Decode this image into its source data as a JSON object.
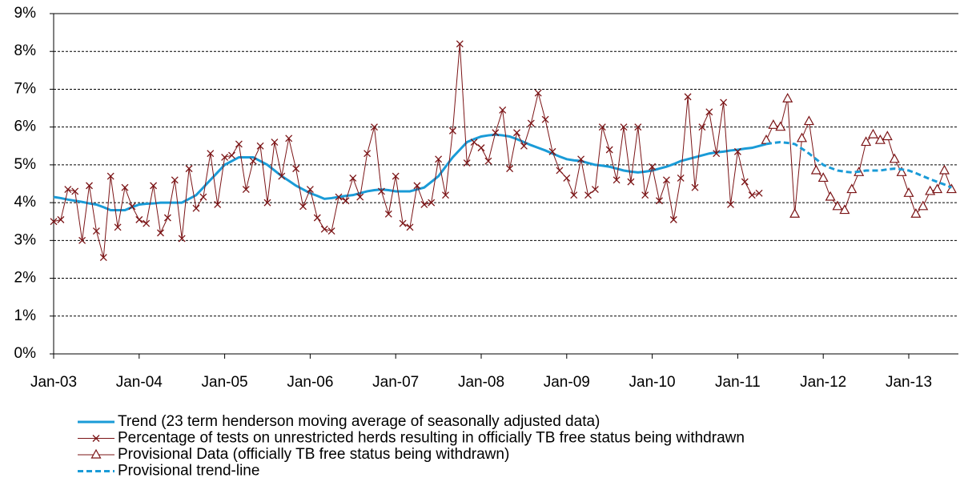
{
  "chart_data": {
    "type": "line",
    "categories": [
      "Jan-03",
      null,
      null,
      null,
      null,
      null,
      null,
      null,
      null,
      null,
      null,
      null,
      "Jan-04",
      null,
      null,
      null,
      null,
      null,
      null,
      null,
      null,
      null,
      null,
      null,
      "Jan-05",
      null,
      null,
      null,
      null,
      null,
      null,
      null,
      null,
      null,
      null,
      null,
      "Jan-06",
      null,
      null,
      null,
      null,
      null,
      null,
      null,
      null,
      null,
      null,
      null,
      "Jan-07",
      null,
      null,
      null,
      null,
      null,
      null,
      null,
      null,
      null,
      null,
      null,
      "Jan-08",
      null,
      null,
      null,
      null,
      null,
      null,
      null,
      null,
      null,
      null,
      null,
      "Jan-09",
      null,
      null,
      null,
      null,
      null,
      null,
      null,
      null,
      null,
      null,
      null,
      "Jan-10",
      null,
      null,
      null,
      null,
      null,
      null,
      null,
      null,
      null,
      null,
      null,
      "Jan-11",
      null,
      null,
      null,
      null,
      null,
      null,
      null,
      null,
      null,
      null,
      null,
      "Jan-12",
      null,
      null,
      null,
      null,
      null,
      null,
      null,
      null,
      null,
      null,
      null,
      "Jan-13",
      null,
      null,
      null,
      null,
      null,
      null
    ],
    "series": [
      {
        "name": "Trend (23 term henderson moving average of seasonally adjusted data)",
        "color": "#1a9bd7",
        "marker": "none",
        "dash": false,
        "width": 3,
        "values": [
          4.15,
          4.12,
          4.08,
          4.05,
          4.02,
          3.98,
          3.95,
          3.88,
          3.8,
          3.8,
          3.8,
          3.88,
          3.95,
          3.97,
          3.98,
          4.0,
          4.0,
          4.0,
          4.0,
          4.1,
          4.2,
          4.4,
          4.6,
          4.8,
          5.0,
          5.1,
          5.2,
          5.2,
          5.2,
          5.1,
          5.0,
          4.85,
          4.7,
          4.58,
          4.45,
          4.35,
          4.25,
          4.18,
          4.1,
          4.12,
          4.15,
          4.18,
          4.2,
          4.25,
          4.3,
          4.33,
          4.35,
          4.33,
          4.3,
          4.3,
          4.3,
          4.35,
          4.4,
          4.55,
          4.7,
          4.95,
          5.2,
          5.4,
          5.6,
          5.68,
          5.75,
          5.78,
          5.8,
          5.78,
          5.75,
          5.68,
          5.6,
          5.52,
          5.45,
          5.38,
          5.3,
          5.22,
          5.15,
          5.12,
          5.1,
          5.05,
          5.0,
          4.98,
          4.95,
          4.9,
          4.85,
          4.82,
          4.8,
          4.82,
          4.85,
          4.9,
          4.95,
          5.02,
          5.1,
          5.15,
          5.2,
          5.25,
          5.3,
          5.33,
          5.35,
          5.38,
          5.4,
          5.43,
          5.45,
          5.5,
          5.55,
          null,
          null,
          null,
          null,
          null,
          null,
          null,
          null,
          null,
          null,
          null,
          null,
          null,
          null,
          null,
          null,
          null,
          null,
          null,
          null,
          null,
          null,
          null,
          null,
          null,
          null
        ]
      },
      {
        "name": "Percentage of tests on unrestricted herds resulting in officially TB free status being withdrawn",
        "color": "#7b1416",
        "marker": "x",
        "dash": false,
        "width": 1,
        "values": [
          3.5,
          3.55,
          4.35,
          4.3,
          3.0,
          4.45,
          3.25,
          2.55,
          4.7,
          3.35,
          4.4,
          3.9,
          3.55,
          3.45,
          4.45,
          3.2,
          3.6,
          4.6,
          3.05,
          4.9,
          3.85,
          4.15,
          5.3,
          3.95,
          5.2,
          5.25,
          5.55,
          4.35,
          5.1,
          5.5,
          4.0,
          5.6,
          4.7,
          5.7,
          4.9,
          3.9,
          4.35,
          3.6,
          3.3,
          3.25,
          4.15,
          4.05,
          4.65,
          4.15,
          5.3,
          6.0,
          4.3,
          3.7,
          4.7,
          3.45,
          3.35,
          4.45,
          3.95,
          4.0,
          5.15,
          4.2,
          5.9,
          8.2,
          5.05,
          5.6,
          5.45,
          5.1,
          5.85,
          6.45,
          4.9,
          5.85,
          5.5,
          6.1,
          6.9,
          6.2,
          5.35,
          4.85,
          4.65,
          4.2,
          5.15,
          4.2,
          4.35,
          6.0,
          5.4,
          4.6,
          6.0,
          4.55,
          6.0,
          4.2,
          4.95,
          4.05,
          4.6,
          3.55,
          4.65,
          6.8,
          4.4,
          6.0,
          6.4,
          5.3,
          6.65,
          3.95,
          5.35,
          4.55,
          4.2,
          4.25,
          null,
          null,
          null,
          null,
          null,
          null,
          null,
          null,
          null,
          null,
          null,
          null,
          null,
          null,
          null,
          null,
          null,
          null,
          null,
          null,
          null,
          null,
          null,
          null,
          null,
          null,
          null
        ]
      },
      {
        "name": "Provisional Data (officially TB free status being withdrawn)",
        "color": "#7b1416",
        "marker": "triangle",
        "dash": false,
        "width": 1,
        "values": [
          null,
          null,
          null,
          null,
          null,
          null,
          null,
          null,
          null,
          null,
          null,
          null,
          null,
          null,
          null,
          null,
          null,
          null,
          null,
          null,
          null,
          null,
          null,
          null,
          null,
          null,
          null,
          null,
          null,
          null,
          null,
          null,
          null,
          null,
          null,
          null,
          null,
          null,
          null,
          null,
          null,
          null,
          null,
          null,
          null,
          null,
          null,
          null,
          null,
          null,
          null,
          null,
          null,
          null,
          null,
          null,
          null,
          null,
          null,
          null,
          null,
          null,
          null,
          null,
          null,
          null,
          null,
          null,
          null,
          null,
          null,
          null,
          null,
          null,
          null,
          null,
          null,
          null,
          null,
          null,
          null,
          null,
          null,
          null,
          null,
          null,
          null,
          null,
          null,
          null,
          null,
          null,
          null,
          null,
          null,
          null,
          null,
          null,
          null,
          null,
          5.65,
          6.05,
          6.0,
          6.75,
          3.7,
          5.7,
          6.15,
          4.85,
          4.65,
          4.15,
          3.9,
          3.8,
          4.35,
          4.8,
          5.6,
          5.8,
          5.65,
          5.75,
          5.15,
          4.8,
          4.25,
          3.7,
          3.9,
          4.3,
          4.35,
          4.85,
          4.35
        ]
      },
      {
        "name": "Provisional trend-line",
        "color": "#1a9bd7",
        "marker": "none",
        "dash": true,
        "width": 3,
        "values": [
          null,
          null,
          null,
          null,
          null,
          null,
          null,
          null,
          null,
          null,
          null,
          null,
          null,
          null,
          null,
          null,
          null,
          null,
          null,
          null,
          null,
          null,
          null,
          null,
          null,
          null,
          null,
          null,
          null,
          null,
          null,
          null,
          null,
          null,
          null,
          null,
          null,
          null,
          null,
          null,
          null,
          null,
          null,
          null,
          null,
          null,
          null,
          null,
          null,
          null,
          null,
          null,
          null,
          null,
          null,
          null,
          null,
          null,
          null,
          null,
          null,
          null,
          null,
          null,
          null,
          null,
          null,
          null,
          null,
          null,
          null,
          null,
          null,
          null,
          null,
          null,
          null,
          null,
          null,
          null,
          null,
          null,
          null,
          null,
          null,
          null,
          null,
          null,
          null,
          null,
          null,
          null,
          null,
          null,
          null,
          null,
          null,
          null,
          null,
          null,
          5.55,
          5.58,
          5.6,
          5.58,
          5.55,
          5.43,
          5.3,
          5.15,
          5.0,
          4.92,
          4.85,
          4.82,
          4.8,
          4.82,
          4.85,
          4.85,
          4.85,
          4.88,
          4.9,
          4.88,
          4.85,
          4.78,
          4.7,
          4.62,
          4.55,
          4.48,
          4.4
        ]
      }
    ],
    "ylim": [
      0,
      9
    ],
    "yticks": [
      {
        "value": 0,
        "label": "0%"
      },
      {
        "value": 1,
        "label": "1%"
      },
      {
        "value": 2,
        "label": "2%"
      },
      {
        "value": 3,
        "label": "3%"
      },
      {
        "value": 4,
        "label": "4%"
      },
      {
        "value": 5,
        "label": "5%"
      },
      {
        "value": 6,
        "label": "6%"
      },
      {
        "value": 7,
        "label": "7%"
      },
      {
        "value": 8,
        "label": "8%"
      },
      {
        "value": 9,
        "label": "9%"
      }
    ],
    "grid": true,
    "legend": "bottom"
  }
}
